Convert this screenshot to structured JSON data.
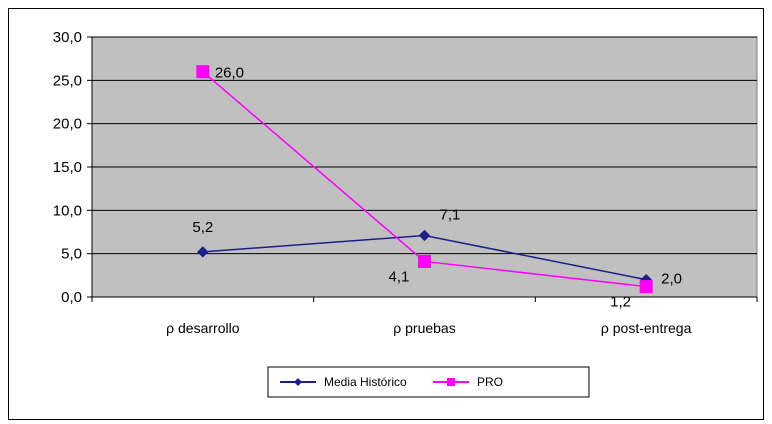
{
  "chart_data": {
    "type": "line",
    "categories": [
      "ρ desarrollo",
      "ρ pruebas",
      "ρ post-entrega"
    ],
    "series": [
      {
        "name": "Media Histórico",
        "values": [
          5.2,
          7.1,
          2.0
        ],
        "labels": [
          "5,2",
          "7,1",
          "2,0"
        ],
        "color": "#1a1f8a",
        "marker": "diamond"
      },
      {
        "name": "PRO",
        "values": [
          26.0,
          4.1,
          1.2
        ],
        "labels": [
          "26,0",
          "4,1",
          "1,2"
        ],
        "color": "#ff00ff",
        "marker": "square"
      }
    ],
    "yticks": [
      "0,0",
      "5,0",
      "10,0",
      "15,0",
      "20,0",
      "25,0",
      "30,0"
    ],
    "ylim": [
      0,
      30
    ],
    "grid": true,
    "plot_background": "#c0c0c0",
    "legend_position": "bottom"
  }
}
